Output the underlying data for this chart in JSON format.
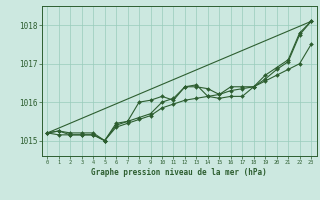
{
  "background_color": "#cce8e0",
  "plot_bg_color": "#cce8e0",
  "grid_color": "#99ccbb",
  "line_color": "#2d5e30",
  "xlabel": "Graphe pression niveau de la mer (hPa)",
  "xlim": [
    -0.5,
    23.5
  ],
  "ylim": [
    1014.6,
    1018.5
  ],
  "yticks": [
    1015,
    1016,
    1017,
    1018
  ],
  "xticks": [
    0,
    1,
    2,
    3,
    4,
    5,
    6,
    7,
    8,
    9,
    10,
    11,
    12,
    13,
    14,
    15,
    16,
    17,
    18,
    19,
    20,
    21,
    22,
    23
  ],
  "line1_x": [
    0,
    1,
    2,
    3,
    4,
    5,
    6,
    7,
    8,
    9,
    10,
    11,
    12,
    13,
    14,
    15,
    16,
    17,
    18,
    19,
    20,
    21,
    22,
    23
  ],
  "line1_y": [
    1015.2,
    1015.25,
    1015.2,
    1015.2,
    1015.2,
    1015.0,
    1015.35,
    1015.45,
    1015.55,
    1015.65,
    1015.85,
    1015.95,
    1016.05,
    1016.1,
    1016.15,
    1016.2,
    1016.3,
    1016.35,
    1016.4,
    1016.55,
    1016.7,
    1016.85,
    1017.0,
    1017.5
  ],
  "line2_x": [
    0,
    1,
    2,
    3,
    4,
    5,
    6,
    7,
    8,
    9,
    10,
    11,
    12,
    13,
    14,
    15,
    16,
    17,
    18,
    19,
    20,
    21,
    22,
    23
  ],
  "line2_y": [
    1015.2,
    1015.15,
    1015.15,
    1015.15,
    1015.15,
    1015.0,
    1015.45,
    1015.5,
    1015.6,
    1015.7,
    1016.0,
    1016.1,
    1016.4,
    1016.4,
    1016.35,
    1016.2,
    1016.4,
    1016.4,
    1016.4,
    1016.6,
    1016.85,
    1017.05,
    1017.75,
    1018.1
  ],
  "line3_x": [
    0,
    1,
    2,
    3,
    4,
    5,
    6,
    7,
    8,
    9,
    10,
    11,
    12,
    13,
    14,
    15,
    16,
    17,
    18,
    19,
    20,
    21,
    22,
    23
  ],
  "line3_y": [
    1015.2,
    1015.25,
    1015.15,
    1015.15,
    1015.15,
    1015.0,
    1015.4,
    1015.5,
    1016.0,
    1016.05,
    1016.15,
    1016.05,
    1016.4,
    1016.45,
    1016.15,
    1016.1,
    1016.15,
    1016.15,
    1016.4,
    1016.7,
    1016.9,
    1017.1,
    1017.8,
    1018.1
  ],
  "line4_x": [
    0,
    23
  ],
  "line4_y": [
    1015.2,
    1018.1
  ],
  "fig_width": 3.2,
  "fig_height": 2.0,
  "dpi": 100
}
